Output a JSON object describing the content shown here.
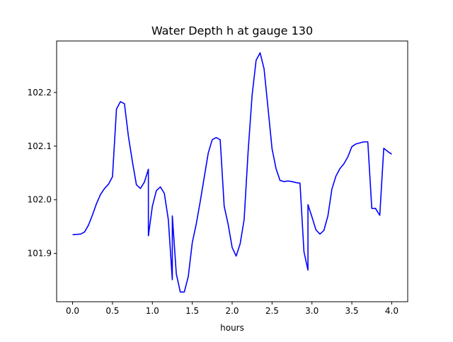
{
  "chart_data": {
    "type": "line",
    "title": "Water Depth h at gauge 130",
    "xlabel": "hours",
    "ylabel": "",
    "xlim": [
      -0.2,
      4.2
    ],
    "ylim": [
      101.81,
      102.296
    ],
    "xticks": [
      0.0,
      0.5,
      1.0,
      1.5,
      2.0,
      2.5,
      3.0,
      3.5,
      4.0
    ],
    "xtick_labels": [
      "0.0",
      "0.5",
      "1.0",
      "1.5",
      "2.0",
      "2.5",
      "3.0",
      "3.5",
      "4.0"
    ],
    "yticks": [
      101.9,
      102.0,
      102.1,
      102.2
    ],
    "ytick_labels": [
      "101.9",
      "102.0",
      "102.1",
      "102.2"
    ],
    "grid": false,
    "legend": "none",
    "series": [
      {
        "color": "#0000ff",
        "x": [
          0.0,
          0.1,
          0.15,
          0.2,
          0.25,
          0.3,
          0.35,
          0.4,
          0.45,
          0.5,
          0.55,
          0.55,
          0.6,
          0.65,
          0.7,
          0.75,
          0.8,
          0.85,
          0.9,
          0.95,
          0.95,
          1.0,
          1.05,
          1.1,
          1.15,
          1.2,
          1.25,
          1.25,
          1.3,
          1.35,
          1.4,
          1.45,
          1.5,
          1.55,
          1.6,
          1.65,
          1.7,
          1.75,
          1.8,
          1.85,
          1.9,
          1.9,
          1.95,
          2.0,
          2.05,
          2.1,
          2.15,
          2.2,
          2.2,
          2.25,
          2.3,
          2.35,
          2.4,
          2.45,
          2.5,
          2.55,
          2.6,
          2.65,
          2.7,
          2.75,
          2.8,
          2.85,
          2.9,
          2.9,
          2.95,
          2.95,
          3.0,
          3.05,
          3.1,
          3.15,
          3.2,
          3.25,
          3.3,
          3.35,
          3.4,
          3.45,
          3.5,
          3.55,
          3.6,
          3.65,
          3.7,
          3.75,
          3.8,
          3.8,
          3.85,
          3.9,
          3.9,
          3.95,
          4.0
        ],
        "y": [
          101.935,
          101.936,
          101.94,
          101.953,
          101.972,
          101.993,
          102.01,
          102.021,
          102.029,
          102.043,
          102.169,
          102.169,
          102.183,
          102.179,
          102.118,
          102.071,
          102.028,
          102.021,
          102.033,
          102.057,
          101.933,
          101.988,
          102.017,
          102.024,
          102.012,
          101.963,
          101.851,
          101.97,
          101.862,
          101.828,
          101.828,
          101.857,
          101.92,
          101.955,
          101.997,
          102.042,
          102.087,
          102.112,
          102.116,
          102.112,
          101.988,
          101.988,
          101.954,
          101.911,
          101.895,
          101.918,
          101.963,
          102.09,
          102.09,
          102.195,
          102.26,
          102.274,
          102.244,
          102.17,
          102.095,
          102.058,
          102.036,
          102.034,
          102.035,
          102.034,
          102.032,
          102.031,
          101.903,
          101.903,
          101.869,
          101.991,
          101.968,
          101.944,
          101.936,
          101.943,
          101.97,
          102.02,
          102.044,
          102.058,
          102.067,
          102.08,
          102.099,
          102.104,
          102.106,
          102.108,
          102.108,
          101.984,
          101.984,
          101.983,
          101.971,
          102.096,
          102.096,
          102.09,
          102.085
        ]
      }
    ]
  }
}
